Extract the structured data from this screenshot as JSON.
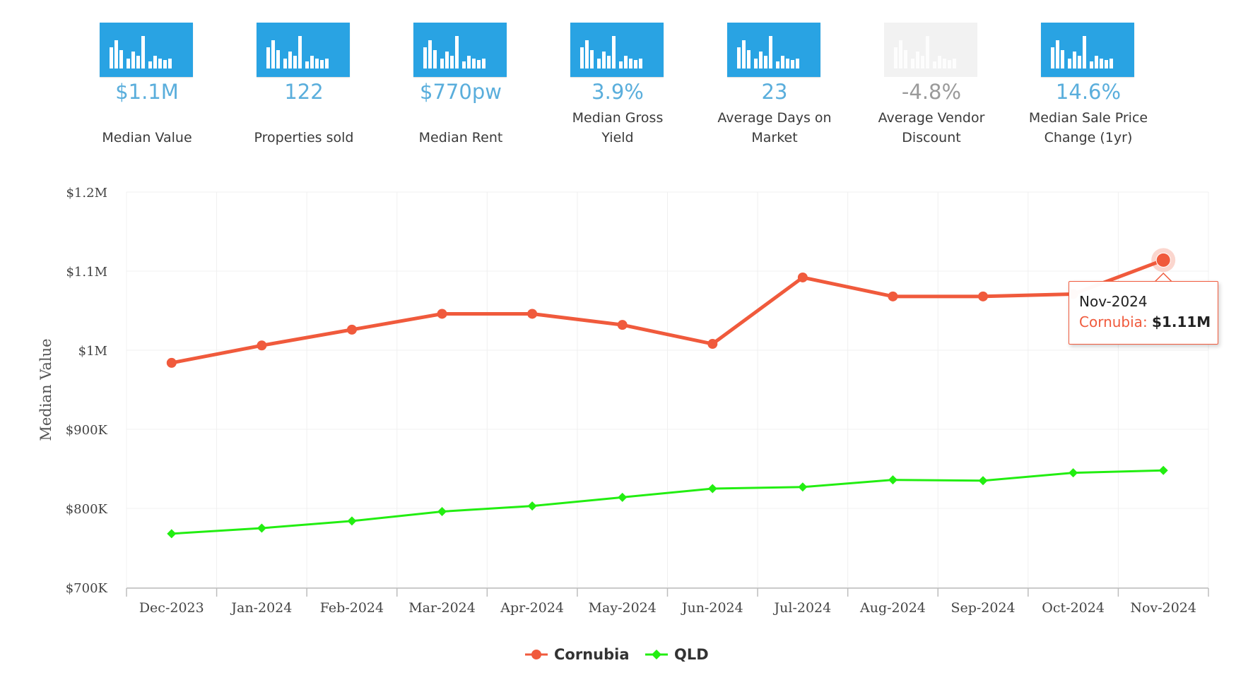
{
  "stats": [
    {
      "value": "$1.1M",
      "label": "Median Value",
      "icon": "bar-chart-icon",
      "muted": false
    },
    {
      "value": "122",
      "label": "Properties sold",
      "icon": "bar-chart-icon",
      "muted": false
    },
    {
      "value": "$770pw",
      "label": "Median Rent",
      "icon": "bar-chart-icon",
      "muted": false
    },
    {
      "value": "3.9%",
      "label": "Median Gross Yield",
      "icon": "bar-chart-icon",
      "muted": false
    },
    {
      "value": "23",
      "label": "Average Days on Market",
      "icon": "bar-chart-icon",
      "muted": false
    },
    {
      "value": "-4.8%",
      "label": "Average Vendor Discount",
      "icon": "bar-chart-icon",
      "muted": true
    },
    {
      "value": "14.6%",
      "label": "Median Sale Price Change (1yr)",
      "icon": "bar-chart-icon",
      "muted": false
    }
  ],
  "colors": {
    "accent": "#29a3e3",
    "value_text": "#5aaedc",
    "cornubia": "#f05a3c",
    "qld": "#22ee11",
    "muted_box": "#f2f2f2"
  },
  "chart_data": {
    "type": "line",
    "categories": [
      "Dec-2023",
      "Jan-2024",
      "Feb-2024",
      "Mar-2024",
      "Apr-2024",
      "May-2024",
      "Jun-2024",
      "Jul-2024",
      "Aug-2024",
      "Sep-2024",
      "Oct-2024",
      "Nov-2024"
    ],
    "series": [
      {
        "name": "Cornubia",
        "color": "#f05a3c",
        "marker": "circle",
        "values": [
          984000,
          1006000,
          1026000,
          1046000,
          1046000,
          1032000,
          1008000,
          1092000,
          1068000,
          1068000,
          1071000,
          1114000
        ]
      },
      {
        "name": "QLD",
        "color": "#22ee11",
        "marker": "diamond",
        "values": [
          768000,
          775000,
          784000,
          796000,
          803000,
          814000,
          825000,
          827000,
          836000,
          835000,
          845000,
          848000
        ]
      }
    ],
    "ylabel": "Median Value",
    "xlabel": "",
    "ylim": [
      700000,
      1200000
    ],
    "yticks": [
      {
        "value": 700000,
        "label": "$700K"
      },
      {
        "value": 800000,
        "label": "$800K"
      },
      {
        "value": 900000,
        "label": "$900K"
      },
      {
        "value": 1000000,
        "label": "$1M"
      },
      {
        "value": 1100000,
        "label": "$1.1M"
      },
      {
        "value": 1200000,
        "label": "$1.2M"
      }
    ],
    "grid": true,
    "legend_position": "bottom-center",
    "tooltip": {
      "date": "Nov-2024",
      "series": "Cornubia",
      "value": "$1.11M"
    }
  }
}
